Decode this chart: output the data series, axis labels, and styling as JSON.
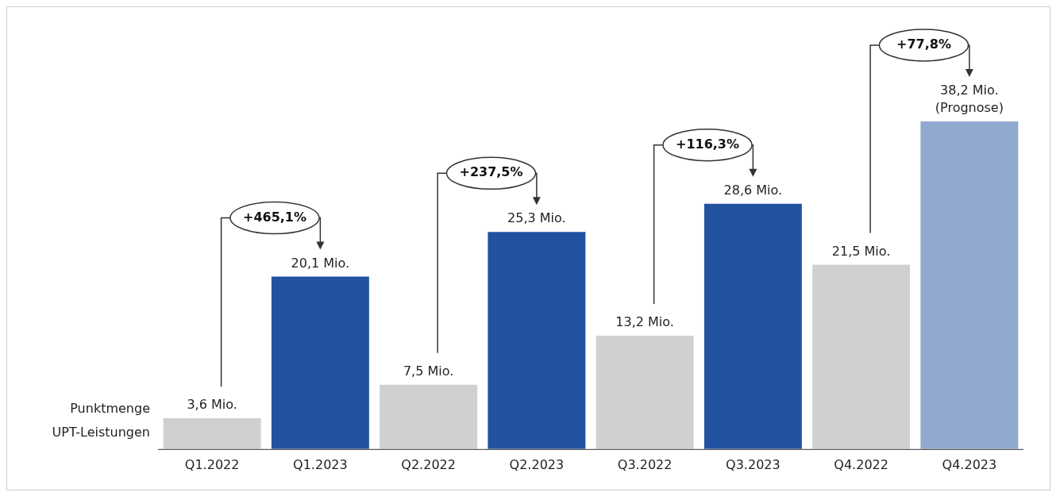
{
  "chart_data": {
    "type": "bar",
    "ylabel": "Punktmenge UPT-Leistungen",
    "categories": [
      "Q1.2022",
      "Q1.2023",
      "Q2.2022",
      "Q2.2023",
      "Q3.2022",
      "Q3.2023",
      "Q4.2022",
      "Q4.2023"
    ],
    "values": [
      3.6,
      20.1,
      7.5,
      25.3,
      13.2,
      28.6,
      21.5,
      38.2
    ],
    "colors": [
      "#d0d0d0",
      "#2352a0",
      "#d0d0d0",
      "#2352a0",
      "#d0d0d0",
      "#2352a0",
      "#d0d0d0",
      "#91a8cf"
    ],
    "value_labels": [
      "3,6 Mio.",
      "20,1 Mio.",
      "7,5 Mio.",
      "25,3 Mio.",
      "13,2 Mio.",
      "28,6 Mio.",
      "21,5 Mio.",
      "38,2 Mio.\n(Prognose)"
    ],
    "annotations": [
      "+465,1%",
      "+237,5%",
      "+116,3%",
      "+77,8%"
    ],
    "grid": false,
    "legend": false
  }
}
